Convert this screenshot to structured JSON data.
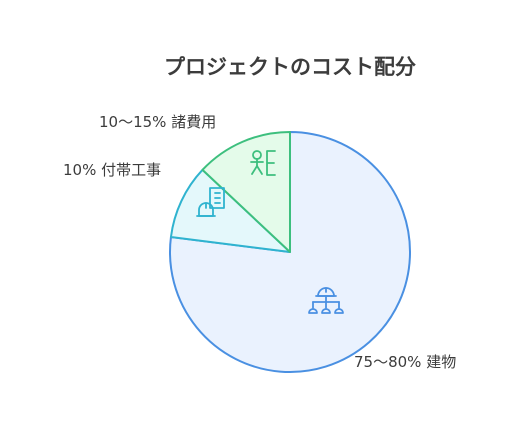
{
  "chart_data": {
    "type": "pie",
    "title": "プロジェクトのコスト配分",
    "slices": [
      {
        "label": "75〜80% 建物",
        "value": 0.77,
        "fill": "#eaf2fe",
        "stroke": "#4a90e2",
        "icon": "construction-worker-org-icon"
      },
      {
        "label": "10% 付帯工事",
        "value": 0.1,
        "fill": "#e4f8fb",
        "stroke": "#2fb3cf",
        "icon": "worker-building-icon"
      },
      {
        "label": "10〜15% 諸費用",
        "value": 0.13,
        "fill": "#e4fbea",
        "stroke": "#3dbf7e",
        "icon": "worker-door-icon"
      }
    ]
  }
}
